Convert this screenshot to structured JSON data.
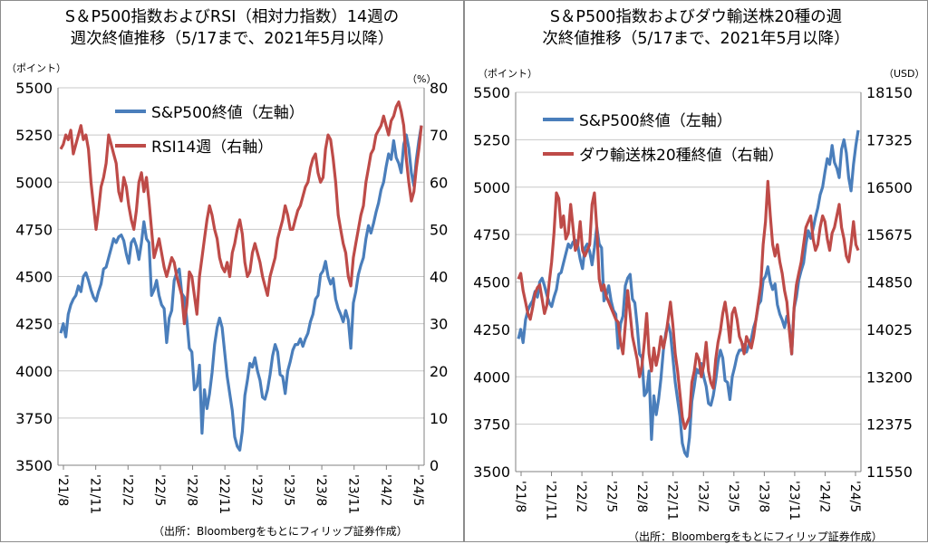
{
  "colors": {
    "sp500": "#4a7ebb",
    "secondary": "#be4b48",
    "grid": "#c8c8c8",
    "axis": "#808080"
  },
  "chart_data": [
    {
      "type": "line",
      "title_lines": [
        "S＆P500指数およびRSI（相対力指数）14週の",
        "週次終値推移（5/17まで、2021年5月以降）"
      ],
      "left_unit": "（ポイント）",
      "right_unit": "（%）",
      "source": "（出所：Bloombergをもとにフィリップ証券作成）",
      "x_ticks": [
        "'21/8",
        "'21/11",
        "'22/2",
        "'22/5",
        "'22/8",
        "'22/11",
        "'23/2",
        "'23/5",
        "'23/8",
        "'23/11",
        "'24/2",
        "'24/5"
      ],
      "left_axis": {
        "min": 3500,
        "max": 5500,
        "ticks": [
          3500,
          3750,
          4000,
          4250,
          4500,
          4750,
          5000,
          5250,
          5500
        ]
      },
      "right_axis": {
        "min": 0,
        "max": 80,
        "ticks": [
          0,
          10,
          20,
          30,
          40,
          50,
          60,
          70,
          80
        ]
      },
      "legend_placement": "top-center",
      "gridlines": "horizontal",
      "series": [
        {
          "name": "S&P500終値（左軸）",
          "axis": "left",
          "color": "#4a7ebb",
          "values": [
            4200,
            4250,
            4180,
            4300,
            4350,
            4380,
            4400,
            4450,
            4420,
            4500,
            4520,
            4480,
            4430,
            4390,
            4370,
            4420,
            4460,
            4540,
            4550,
            4600,
            4650,
            4700,
            4680,
            4710,
            4720,
            4690,
            4620,
            4570,
            4680,
            4700,
            4660,
            4590,
            4680,
            4790,
            4700,
            4680,
            4400,
            4430,
            4480,
            4400,
            4350,
            4330,
            4150,
            4280,
            4320,
            4480,
            4520,
            4540,
            4410,
            4390,
            4270,
            4120,
            4100,
            3900,
            3920,
            4030,
            3670,
            3900,
            3800,
            3880,
            3990,
            4140,
            4230,
            4280,
            4230,
            4100,
            3970,
            3880,
            3790,
            3650,
            3600,
            3580,
            3680,
            3870,
            3950,
            4040,
            4020,
            4070,
            4000,
            3950,
            3860,
            3850,
            3900,
            3980,
            4080,
            4140,
            4100,
            3980,
            3970,
            3880,
            4000,
            4050,
            4110,
            4140,
            4140,
            4170,
            4130,
            4170,
            4200,
            4260,
            4300,
            4380,
            4400,
            4510,
            4530,
            4580,
            4500,
            4460,
            4490,
            4380,
            4330,
            4300,
            4260,
            4320,
            4270,
            4120,
            4360,
            4420,
            4510,
            4560,
            4600,
            4700,
            4770,
            4730,
            4780,
            4840,
            4890,
            4960,
            5000,
            5080,
            5150,
            5120,
            5220,
            5130,
            5100,
            5050,
            5200,
            5250,
            5180,
            5050,
            4980,
            5120,
            5220,
            5300
          ]
        },
        {
          "name": "RSI14週（右軸）",
          "axis": "right",
          "color": "#be4b48",
          "values": [
            67,
            68,
            70,
            69,
            71,
            66,
            68,
            70,
            72,
            69,
            70,
            67,
            60,
            55,
            50,
            54,
            59,
            61,
            64,
            70,
            68,
            66,
            64,
            58,
            56,
            61,
            59,
            55,
            52,
            50,
            54,
            60,
            62,
            58,
            61,
            56,
            50,
            44,
            46,
            48,
            45,
            42,
            40,
            42,
            44,
            43,
            40,
            38,
            36,
            30,
            34,
            41,
            40,
            36,
            32,
            40,
            44,
            48,
            52,
            55,
            53,
            50,
            48,
            44,
            42,
            41,
            43,
            40,
            45,
            47,
            50,
            52,
            49,
            43,
            40,
            41,
            45,
            47,
            45,
            43,
            40,
            38,
            36,
            40,
            42,
            44,
            48,
            50,
            52,
            55,
            53,
            50,
            50,
            52,
            54,
            55,
            57,
            59,
            60,
            63,
            65,
            66,
            62,
            60,
            61,
            67,
            70,
            69,
            65,
            60,
            53,
            50,
            47,
            45,
            40,
            38,
            44,
            47,
            50,
            53,
            55,
            60,
            63,
            66,
            67,
            70,
            71,
            72,
            74,
            72,
            70,
            73,
            74,
            76,
            77,
            75,
            72,
            65,
            60,
            56,
            58,
            63,
            67,
            72
          ]
        }
      ]
    },
    {
      "type": "line",
      "title_lines": [
        "S＆P500指数およびダウ輸送株20種の週",
        "次終値推移（5/17まで、2021年5月以降）"
      ],
      "left_unit": "（ポイント）",
      "right_unit": "（USD）",
      "source": "（出所：Bloombergをもとにフィリップ証券作成）",
      "x_ticks": [
        "'21/8",
        "'21/11",
        "'22/2",
        "'22/5",
        "'22/8",
        "'22/11",
        "'23/2",
        "'23/5",
        "'23/8",
        "'23/11",
        "'24/2",
        "'24/5"
      ],
      "left_axis": {
        "min": 3500,
        "max": 5500,
        "ticks": [
          3500,
          3750,
          4000,
          4250,
          4500,
          4750,
          5000,
          5250,
          5500
        ]
      },
      "right_axis": {
        "min": 11550,
        "max": 18150,
        "ticks": [
          11550,
          12375,
          13200,
          14025,
          14850,
          15675,
          16500,
          17325,
          18150
        ]
      },
      "legend_placement": "top-center",
      "gridlines": "horizontal",
      "series": [
        {
          "name": "S&P500終値（左軸）",
          "axis": "left",
          "color": "#4a7ebb",
          "values": [
            4200,
            4250,
            4180,
            4300,
            4350,
            4380,
            4400,
            4450,
            4420,
            4500,
            4520,
            4480,
            4430,
            4390,
            4370,
            4420,
            4460,
            4540,
            4550,
            4600,
            4650,
            4700,
            4680,
            4710,
            4720,
            4690,
            4620,
            4570,
            4680,
            4700,
            4660,
            4590,
            4680,
            4790,
            4700,
            4680,
            4400,
            4430,
            4480,
            4400,
            4350,
            4330,
            4150,
            4280,
            4320,
            4480,
            4520,
            4540,
            4410,
            4390,
            4270,
            4120,
            4100,
            3900,
            3920,
            4030,
            3670,
            3900,
            3800,
            3880,
            3990,
            4140,
            4230,
            4280,
            4230,
            4100,
            3970,
            3880,
            3790,
            3650,
            3600,
            3580,
            3680,
            3870,
            3950,
            4040,
            4020,
            4070,
            4000,
            3950,
            3860,
            3850,
            3900,
            3980,
            4080,
            4140,
            4100,
            3980,
            3970,
            3880,
            4000,
            4050,
            4110,
            4140,
            4140,
            4170,
            4130,
            4170,
            4200,
            4260,
            4300,
            4380,
            4400,
            4510,
            4530,
            4580,
            4500,
            4460,
            4490,
            4380,
            4330,
            4300,
            4260,
            4320,
            4270,
            4120,
            4360,
            4420,
            4510,
            4560,
            4600,
            4700,
            4770,
            4730,
            4780,
            4840,
            4890,
            4960,
            5000,
            5080,
            5150,
            5120,
            5220,
            5130,
            5100,
            5050,
            5200,
            5250,
            5180,
            5050,
            4980,
            5120,
            5220,
            5300
          ]
        },
        {
          "name": "ダウ輸送株20種終値（右軸）",
          "axis": "right",
          "color": "#be4b48",
          "values": [
            14900,
            15000,
            14700,
            14500,
            14300,
            14200,
            14400,
            14650,
            14750,
            14800,
            14550,
            14300,
            14450,
            14850,
            15200,
            15700,
            16400,
            16300,
            15800,
            16000,
            15600,
            15700,
            16200,
            15800,
            15400,
            15500,
            15900,
            15400,
            15300,
            15400,
            15500,
            16200,
            16400,
            15800,
            14900,
            14700,
            14800,
            14600,
            14500,
            14400,
            14300,
            14200,
            14150,
            13800,
            13600,
            14100,
            14700,
            14300,
            13900,
            13700,
            13500,
            13200,
            13400,
            13800,
            14300,
            13600,
            13300,
            13700,
            13400,
            13600,
            13900,
            13700,
            13900,
            14200,
            14500,
            14100,
            13600,
            13300,
            12900,
            12500,
            12300,
            12400,
            12500,
            13100,
            13300,
            13600,
            13500,
            13200,
            13400,
            13800,
            13300,
            13100,
            13000,
            13500,
            13800,
            14000,
            14300,
            14500,
            14200,
            13800,
            14300,
            14400,
            14200,
            13900,
            13800,
            13600,
            13900,
            13800,
            13700,
            13900,
            14200,
            14500,
            14800,
            15500,
            15900,
            16600,
            16000,
            15500,
            15300,
            15500,
            15200,
            15000,
            14700,
            14500,
            14000,
            13600,
            14400,
            14800,
            15000,
            15200,
            15500,
            15800,
            15900,
            16000,
            15600,
            15400,
            15500,
            15800,
            16000,
            15900,
            15600,
            15400,
            15700,
            15800,
            16000,
            16200,
            15800,
            15600,
            15300,
            15200,
            15500,
            15900,
            15500,
            15400
          ]
        }
      ]
    }
  ]
}
